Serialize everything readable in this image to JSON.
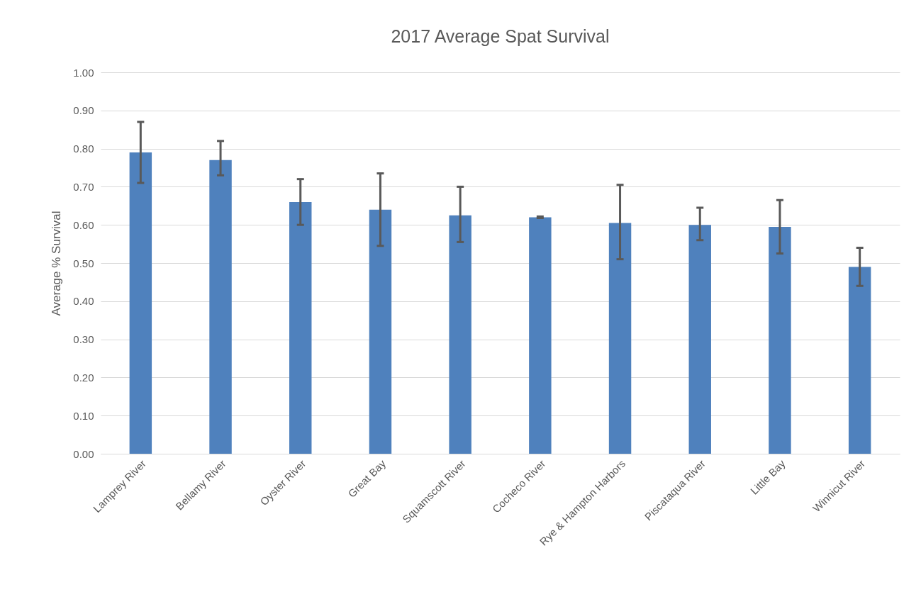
{
  "chart_data": {
    "type": "bar",
    "title": "2017 Average Spat Survival",
    "ylabel": "Average % Survival",
    "categories": [
      "Lamprey River",
      "Bellamy River",
      "Oyster River",
      "Great Bay",
      "Squamscott River",
      "Cocheco River",
      "Rye & Hampton Harbors",
      "Piscataqua River",
      "Little Bay",
      "Winnicut River"
    ],
    "values": [
      0.79,
      0.77,
      0.66,
      0.64,
      0.625,
      0.62,
      0.605,
      0.6,
      0.595,
      0.49
    ],
    "errors": [
      [
        0.71,
        0.87
      ],
      [
        0.73,
        0.82
      ],
      [
        0.6,
        0.72
      ],
      [
        0.545,
        0.735
      ],
      [
        0.555,
        0.7
      ],
      [
        0.618,
        0.622
      ],
      [
        0.51,
        0.705
      ],
      [
        0.56,
        0.645
      ],
      [
        0.525,
        0.665
      ],
      [
        0.44,
        0.54
      ]
    ],
    "color": "#4f81bd",
    "ylim": [
      0,
      1
    ],
    "yticks": [
      {
        "value": 0,
        "label": "0.00"
      },
      {
        "value": 0.1,
        "label": "0.10"
      },
      {
        "value": 0.2,
        "label": "0.20"
      },
      {
        "value": 0.3,
        "label": "0.30"
      },
      {
        "value": 0.4,
        "label": "0.40"
      },
      {
        "value": 0.5,
        "label": "0.50"
      },
      {
        "value": 0.6,
        "label": "0.60"
      },
      {
        "value": 0.7,
        "label": "0.70"
      },
      {
        "value": 0.8,
        "label": "0.80"
      },
      {
        "value": 0.9,
        "label": "0.90"
      },
      {
        "value": 1,
        "label": "1.00"
      }
    ],
    "grid": "y"
  }
}
